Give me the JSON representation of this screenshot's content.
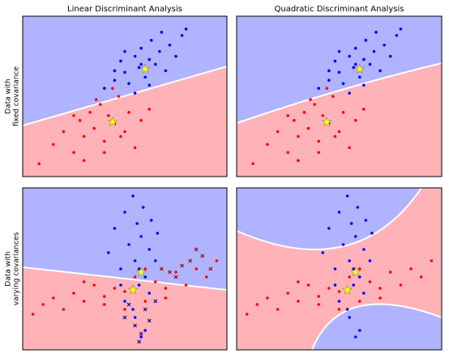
{
  "chart_data": [
    {
      "type": "scatter",
      "title": "Linear Discriminant Analysis",
      "ylabel": [
        "Data with",
        "fixed covariance"
      ],
      "xlim": [
        0,
        100
      ],
      "ylim": [
        0,
        100
      ],
      "series": [
        {
          "color": "#ff0000",
          "marker": "o",
          "x": [
            8,
            15,
            20,
            25,
            28,
            30,
            33,
            35,
            38,
            40,
            42,
            45,
            47,
            50,
            52,
            55,
            58,
            62,
            30,
            36,
            44,
            48,
            25,
            40
          ],
          "values": [
            8,
            20,
            28,
            15,
            35,
            25,
            40,
            30,
            45,
            22,
            38,
            33,
            50,
            28,
            40,
            18,
            35,
            42,
            10,
            48,
            55,
            25,
            38,
            15
          ]
        },
        {
          "color": "#0000ff",
          "marker": "o",
          "x": [
            40,
            45,
            48,
            50,
            52,
            55,
            57,
            58,
            60,
            62,
            63,
            65,
            67,
            70,
            72,
            75,
            78,
            80,
            55,
            50,
            45,
            68,
            62,
            58
          ],
          "values": [
            55,
            60,
            72,
            65,
            58,
            75,
            68,
            80,
            62,
            73,
            85,
            70,
            78,
            66,
            82,
            75,
            88,
            92,
            52,
            78,
            66,
            90,
            57,
            70
          ]
        },
        {
          "color": "#ffff00",
          "marker": "*",
          "x": [
            44,
            60
          ],
          "values": [
            34,
            67
          ]
        }
      ]
    },
    {
      "type": "scatter",
      "title": "Quadratic Discriminant Analysis",
      "xlim": [
        0,
        100
      ],
      "ylim": [
        0,
        100
      ],
      "series": [
        {
          "color": "#ff0000",
          "marker": "o",
          "x": [
            8,
            15,
            20,
            25,
            28,
            30,
            33,
            35,
            38,
            40,
            42,
            45,
            47,
            50,
            52,
            55,
            58,
            62,
            30,
            36,
            44,
            48,
            25,
            40
          ],
          "values": [
            8,
            20,
            28,
            15,
            35,
            25,
            40,
            30,
            45,
            22,
            38,
            33,
            50,
            28,
            40,
            18,
            35,
            42,
            10,
            48,
            55,
            25,
            38,
            15
          ]
        },
        {
          "color": "#0000ff",
          "marker": "o",
          "x": [
            40,
            45,
            48,
            50,
            52,
            55,
            57,
            58,
            60,
            62,
            63,
            65,
            67,
            70,
            72,
            75,
            78,
            80,
            55,
            50,
            45,
            68,
            62,
            58
          ],
          "values": [
            55,
            60,
            72,
            65,
            58,
            75,
            68,
            80,
            62,
            73,
            85,
            70,
            78,
            66,
            82,
            75,
            88,
            92,
            52,
            78,
            66,
            90,
            57,
            70
          ]
        },
        {
          "color": "#ffff00",
          "marker": "*",
          "x": [
            44,
            60
          ],
          "values": [
            34,
            67
          ]
        }
      ]
    },
    {
      "type": "scatter",
      "ylabel": [
        "Data with",
        "varying covariances"
      ],
      "xlim": [
        0,
        100
      ],
      "ylim": [
        0,
        100
      ],
      "series": [
        {
          "color": "#ff0000",
          "marker": "o",
          "x": [
            5,
            10,
            15,
            20,
            25,
            30,
            35,
            40,
            45,
            50,
            55,
            60,
            65,
            70,
            75,
            80,
            85,
            90,
            95,
            40,
            50,
            60,
            70,
            30
          ],
          "values": [
            22,
            28,
            32,
            25,
            35,
            30,
            40,
            33,
            38,
            36,
            45,
            30,
            42,
            38,
            48,
            40,
            50,
            45,
            55,
            28,
            25,
            50,
            32,
            42
          ]
        },
        {
          "color": "#0000ff",
          "marker": "o",
          "x": [
            42,
            45,
            48,
            50,
            52,
            54,
            55,
            56,
            57,
            58,
            59,
            60,
            62,
            63,
            65,
            66,
            50,
            55,
            60,
            58,
            54,
            62,
            48,
            57
          ],
          "values": [
            60,
            75,
            50,
            85,
            65,
            95,
            55,
            78,
            40,
            70,
            88,
            45,
            62,
            80,
            55,
            72,
            30,
            20,
            12,
            8,
            25,
            35,
            40,
            50
          ]
        },
        {
          "color": "#990000",
          "marker": "x",
          "x": [
            72,
            78,
            82,
            88,
            92,
            85,
            75,
            68
          ],
          "values": [
            48,
            52,
            55,
            58,
            50,
            62,
            45,
            50
          ]
        },
        {
          "color": "#000099",
          "marker": "x",
          "x": [
            50,
            55,
            58,
            60,
            62,
            65,
            52,
            57
          ],
          "values": [
            20,
            15,
            10,
            25,
            18,
            30,
            28,
            5
          ]
        },
        {
          "color": "#ffff00",
          "marker": "*",
          "x": [
            54,
            58
          ],
          "values": [
            37,
            48
          ]
        }
      ]
    },
    {
      "type": "scatter",
      "xlim": [
        0,
        100
      ],
      "ylim": [
        0,
        100
      ],
      "series": [
        {
          "color": "#ff0000",
          "marker": "o",
          "x": [
            5,
            10,
            15,
            20,
            25,
            30,
            35,
            40,
            45,
            50,
            55,
            60,
            65,
            70,
            75,
            80,
            85,
            90,
            95,
            40,
            50,
            60,
            70,
            30
          ],
          "values": [
            22,
            28,
            32,
            25,
            35,
            30,
            40,
            33,
            38,
            36,
            45,
            30,
            42,
            38,
            48,
            40,
            50,
            45,
            55,
            28,
            25,
            50,
            32,
            42
          ]
        },
        {
          "color": "#0000ff",
          "marker": "o",
          "x": [
            42,
            45,
            48,
            50,
            52,
            54,
            55,
            56,
            57,
            58,
            59,
            60,
            62,
            63,
            65,
            66,
            50,
            55,
            60,
            58,
            54,
            62,
            48,
            57
          ],
          "values": [
            60,
            75,
            50,
            85,
            65,
            95,
            55,
            78,
            40,
            70,
            88,
            45,
            62,
            80,
            55,
            72,
            30,
            20,
            12,
            8,
            25,
            35,
            40,
            50
          ]
        },
        {
          "color": "#ffff00",
          "marker": "*",
          "x": [
            54,
            58
          ],
          "values": [
            37,
            48
          ]
        }
      ]
    }
  ]
}
